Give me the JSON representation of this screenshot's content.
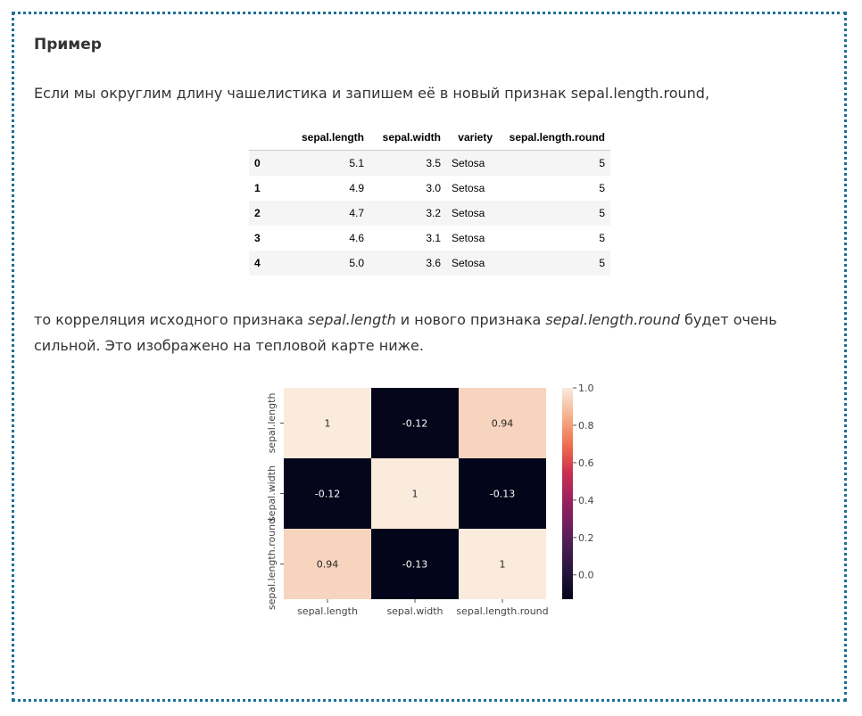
{
  "heading": "Пример",
  "para1": "Если мы округлим длину чашелистика и запишем её в новый признак sepal.length.round,",
  "para2": {
    "a": "то корреляция исходного признака ",
    "b": "sepal.length",
    "c": " и нового признака ",
    "d": "sepal.length.round",
    "e": " будет очень сильной. Это изображено на тепловой карте ниже."
  },
  "table": {
    "columns": [
      "",
      "sepal.length",
      "sepal.width",
      "variety",
      "sepal.length.round"
    ],
    "rows": [
      {
        "index": "0",
        "sepal_length": "5.1",
        "sepal_width": "3.5",
        "variety": "Setosa",
        "round": "5"
      },
      {
        "index": "1",
        "sepal_length": "4.9",
        "sepal_width": "3.0",
        "variety": "Setosa",
        "round": "5"
      },
      {
        "index": "2",
        "sepal_length": "4.7",
        "sepal_width": "3.2",
        "variety": "Setosa",
        "round": "5"
      },
      {
        "index": "3",
        "sepal_length": "4.6",
        "sepal_width": "3.1",
        "variety": "Setosa",
        "round": "5"
      },
      {
        "index": "4",
        "sepal_length": "5.0",
        "sepal_width": "3.6",
        "variety": "Setosa",
        "round": "5"
      }
    ]
  },
  "chart_data": {
    "type": "heatmap",
    "title": "",
    "xlabel": "",
    "ylabel": "",
    "labels": [
      "sepal.length",
      "sepal.width",
      "sepal.length.round"
    ],
    "matrix": [
      [
        1,
        -0.12,
        0.94
      ],
      [
        -0.12,
        1,
        -0.13
      ],
      [
        0.94,
        -0.13,
        1
      ]
    ],
    "annotations": [
      [
        "1",
        "-0.12",
        "0.94"
      ],
      [
        "-0.12",
        "1",
        "-0.13"
      ],
      [
        "0.94",
        "-0.13",
        "1"
      ]
    ],
    "colorbar": {
      "range": [
        -0.13,
        1.0
      ],
      "ticks": [
        0.0,
        0.2,
        0.4,
        0.6,
        0.8,
        1.0
      ],
      "tick_labels": [
        "0.0",
        "0.2",
        "0.4",
        "0.6",
        "0.8",
        "1.0"
      ]
    },
    "colormap": "rocket",
    "colors": {
      "low": "#03051a",
      "high": "#faebdd",
      "mid_094": "#f6cdb4"
    }
  }
}
